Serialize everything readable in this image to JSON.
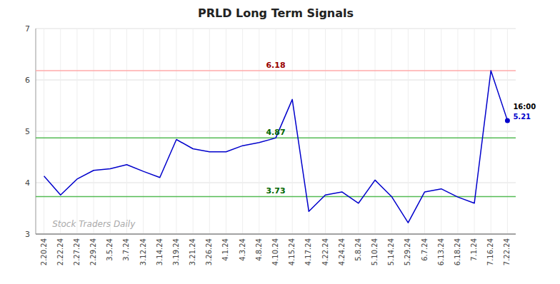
{
  "chart_data": {
    "type": "line",
    "title": "PRLD Long Term Signals",
    "categories": [
      "2.20.24",
      "2.22.24",
      "2.27.24",
      "2.29.24",
      "3.5.24",
      "3.7.24",
      "3.12.24",
      "3.14.24",
      "3.19.24",
      "3.21.24",
      "3.26.24",
      "4.1.24",
      "4.3.24",
      "4.8.24",
      "4.10.24",
      "4.15.24",
      "4.17.24",
      "4.22.24",
      "4.24.24",
      "5.8.24",
      "5.10.24",
      "5.14.24",
      "5.29.24",
      "6.7.24",
      "6.13.24",
      "6.18.24",
      "7.1.24",
      "7.16.24",
      "7.22.24"
    ],
    "values": [
      4.13,
      3.76,
      4.07,
      4.24,
      4.27,
      4.35,
      4.22,
      4.1,
      4.84,
      4.66,
      4.6,
      4.6,
      4.72,
      4.78,
      4.87,
      5.62,
      3.44,
      3.76,
      3.82,
      3.6,
      4.05,
      3.73,
      3.22,
      3.82,
      3.88,
      3.72,
      3.6,
      6.18,
      5.21
    ],
    "color": "#0000cc",
    "ylim": [
      3,
      7
    ],
    "yticks": [
      3,
      4,
      5,
      6,
      7
    ],
    "grid": true,
    "annotations": [
      {
        "text": "6.18",
        "y": 6.18,
        "category": "4.10.24",
        "color": "#990000",
        "line_color": "#ffaaaa"
      },
      {
        "text": "4.87",
        "y": 4.87,
        "category": "4.10.24",
        "color": "#006600",
        "line_color": "#55bb55"
      },
      {
        "text": "3.73",
        "y": 3.73,
        "category": "4.10.24",
        "color": "#006600",
        "line_color": "#55bb55"
      },
      {
        "text": "16:00",
        "category": "7.22.24"
      },
      {
        "text": "5.21",
        "y": 5.21,
        "category": "7.22.24",
        "color": "#0000cc"
      },
      {
        "text": "Stock Traders Daily",
        "color": "#aaaaaa"
      }
    ]
  }
}
